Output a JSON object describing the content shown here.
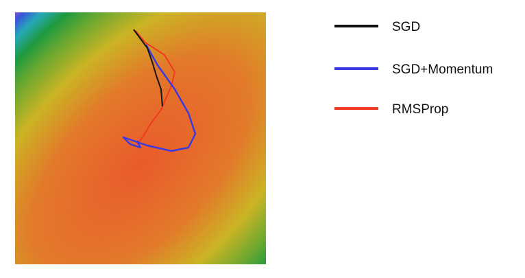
{
  "legend": {
    "items": [
      {
        "label": "SGD"
      },
      {
        "label": "SGD+Momentum"
      },
      {
        "label": "RMSProp"
      }
    ]
  }
}
